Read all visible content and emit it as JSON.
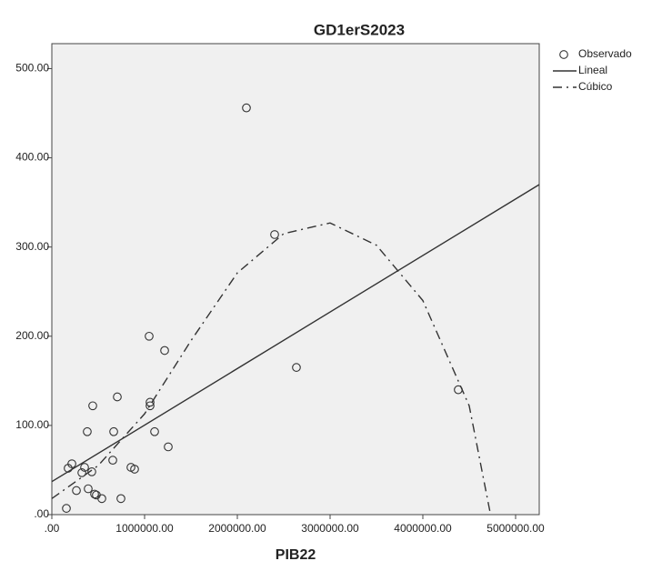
{
  "chart_data": {
    "type": "scatter",
    "title": "GD1erS2023",
    "x_label": "PIB22",
    "xlim": [
      0,
      5255000
    ],
    "ylim": [
      0,
      528
    ],
    "xticks": [
      {
        "value": 0,
        "label": ".00"
      },
      {
        "value": 1000000,
        "label": "1000000.00"
      },
      {
        "value": 2000000,
        "label": "2000000.00"
      },
      {
        "value": 3000000,
        "label": "3000000.00"
      },
      {
        "value": 4000000,
        "label": "4000000.00"
      },
      {
        "value": 5000000,
        "label": "5000000.00"
      }
    ],
    "yticks": [
      {
        "value": 0,
        "label": ".00"
      },
      {
        "value": 100,
        "label": "100.00"
      },
      {
        "value": 200,
        "label": "200.00"
      },
      {
        "value": 300,
        "label": "300.00"
      },
      {
        "value": 400,
        "label": "400.00"
      },
      {
        "value": 500,
        "label": "500.00"
      }
    ],
    "series": [
      {
        "name": "Observado",
        "kind": "points",
        "color": "#333333",
        "x": [
          157000,
          176000,
          216000,
          265000,
          324000,
          353000,
          382000,
          392000,
          431000,
          441000,
          461000,
          480000,
          539000,
          657000,
          667000,
          706000,
          745000,
          853000,
          892000,
          1049000,
          1059000,
          1059000,
          1108000,
          1216000,
          1255000,
          2098000,
          2402000,
          2637000,
          4382000
        ],
        "values": [
          7,
          52,
          57,
          27,
          47,
          53,
          93,
          29,
          48,
          122,
          23,
          22,
          18,
          61,
          93,
          132,
          18,
          53,
          51,
          200,
          126,
          122,
          93,
          184,
          76,
          456,
          314,
          165,
          140
        ]
      },
      {
        "name": "Lineal",
        "kind": "line",
        "dash": "solid",
        "color": "#333333",
        "x": [
          0,
          5255000
        ],
        "values": [
          37,
          370
        ]
      },
      {
        "name": "Cúbico",
        "kind": "line",
        "dash": "dash-dot",
        "color": "#333333",
        "x": [
          0,
          500000,
          1000000,
          1500000,
          2000000,
          2500000,
          3000000,
          3500000,
          4000000,
          4500000,
          4730000
        ],
        "values": [
          18,
          55,
          113,
          195,
          271,
          315,
          327,
          302,
          240,
          122,
          0
        ]
      }
    ]
  }
}
